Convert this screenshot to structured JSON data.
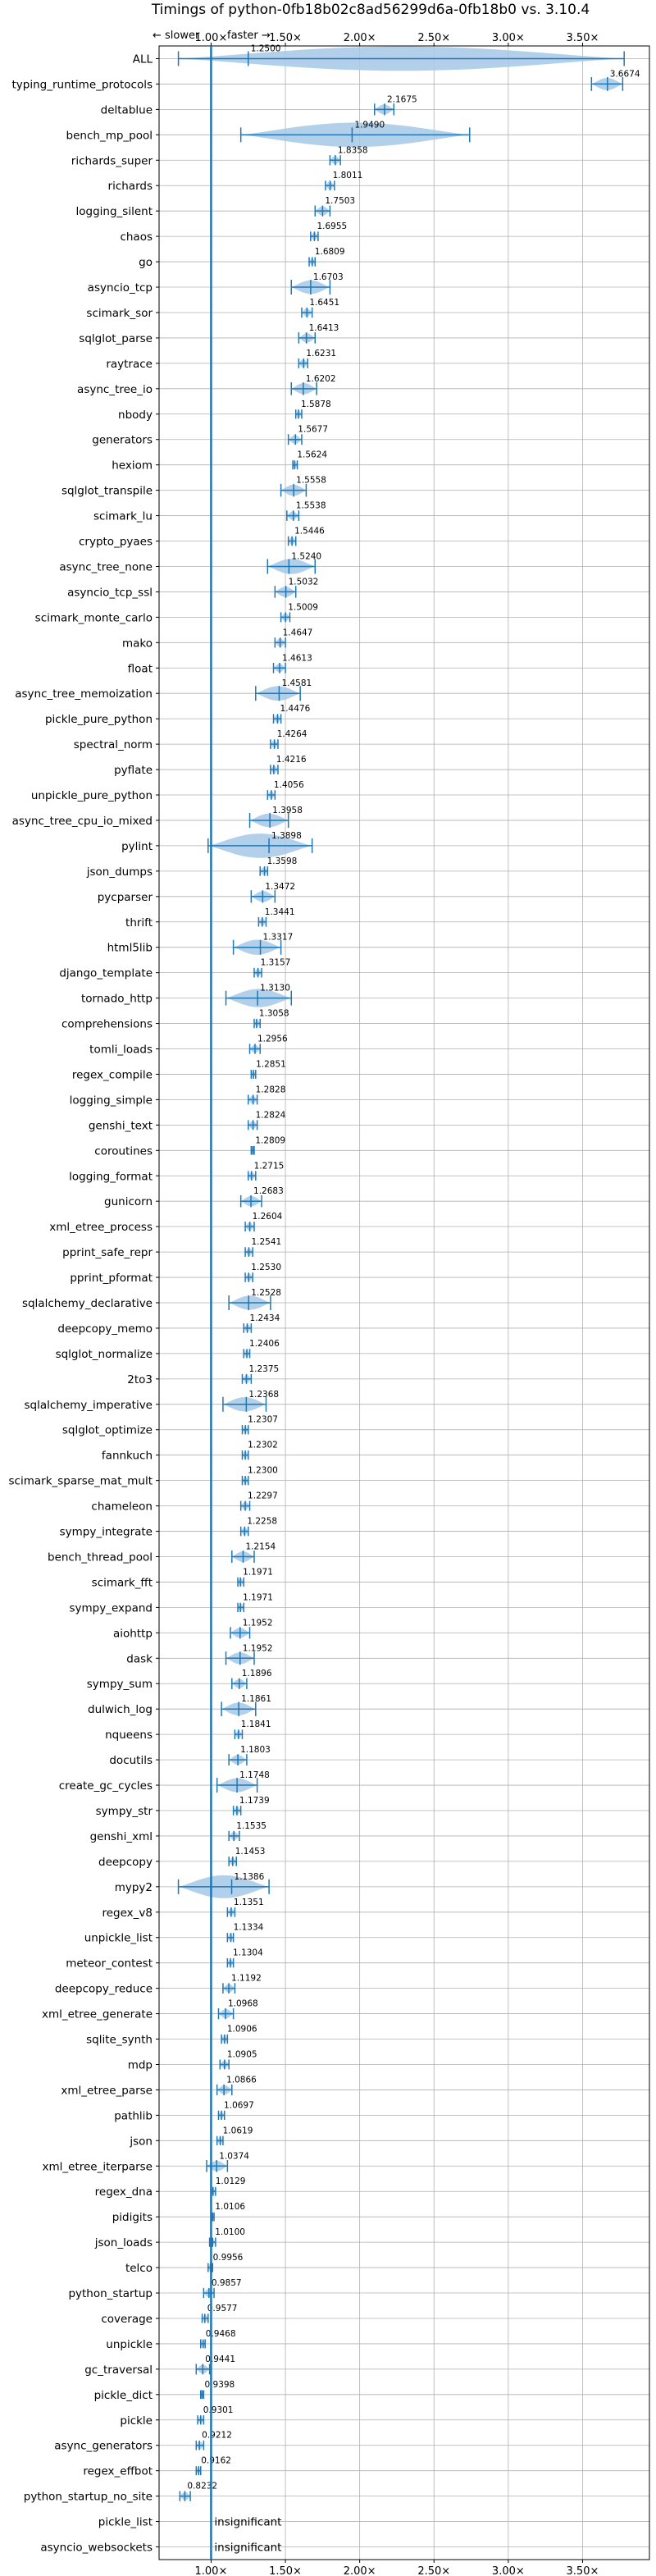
{
  "chart_data": {
    "type": "violin",
    "title": "Timings of python-0fb18b02c8ad56299d6a-0fb18b0 vs. 3.10.4",
    "xlim": [
      0.65,
      3.95
    ],
    "xticks": [
      "1.00×",
      "1.50×",
      "2.00×",
      "2.50×",
      "3.00×",
      "3.50×"
    ],
    "direction_left": "← slower",
    "direction_right": "faster →",
    "reference_line": 1.0,
    "grid": true,
    "benchmarks": [
      {
        "name": "ALL",
        "label": "1.2500",
        "value": 1.25,
        "lo": 0.78,
        "hi": 3.78
      },
      {
        "name": "typing_runtime_protocols",
        "label": "3.6674",
        "value": 3.6674,
        "lo": 3.56,
        "hi": 3.77
      },
      {
        "name": "deltablue",
        "label": "2.1675",
        "value": 2.1675,
        "lo": 2.1,
        "hi": 2.23
      },
      {
        "name": "bench_mp_pool",
        "label": "1.9490",
        "value": 1.949,
        "lo": 1.2,
        "hi": 2.74
      },
      {
        "name": "richards_super",
        "label": "1.8358",
        "value": 1.8358,
        "lo": 1.8,
        "hi": 1.87
      },
      {
        "name": "richards",
        "label": "1.8011",
        "value": 1.8011,
        "lo": 1.77,
        "hi": 1.83
      },
      {
        "name": "logging_silent",
        "label": "1.7503",
        "value": 1.7503,
        "lo": 1.7,
        "hi": 1.8
      },
      {
        "name": "chaos",
        "label": "1.6955",
        "value": 1.6955,
        "lo": 1.67,
        "hi": 1.72
      },
      {
        "name": "go",
        "label": "1.6809",
        "value": 1.6809,
        "lo": 1.66,
        "hi": 1.7
      },
      {
        "name": "asyncio_tcp",
        "label": "1.6703",
        "value": 1.6703,
        "lo": 1.54,
        "hi": 1.8
      },
      {
        "name": "scimark_sor",
        "label": "1.6451",
        "value": 1.6451,
        "lo": 1.61,
        "hi": 1.68
      },
      {
        "name": "sqlglot_parse",
        "label": "1.6413",
        "value": 1.6413,
        "lo": 1.59,
        "hi": 1.7
      },
      {
        "name": "raytrace",
        "label": "1.6231",
        "value": 1.6231,
        "lo": 1.59,
        "hi": 1.65
      },
      {
        "name": "async_tree_io",
        "label": "1.6202",
        "value": 1.6202,
        "lo": 1.54,
        "hi": 1.71
      },
      {
        "name": "nbody",
        "label": "1.5878",
        "value": 1.5878,
        "lo": 1.57,
        "hi": 1.61
      },
      {
        "name": "generators",
        "label": "1.5677",
        "value": 1.5677,
        "lo": 1.52,
        "hi": 1.61
      },
      {
        "name": "hexiom",
        "label": "1.5624",
        "value": 1.5624,
        "lo": 1.55,
        "hi": 1.58
      },
      {
        "name": "sqlglot_transpile",
        "label": "1.5558",
        "value": 1.5558,
        "lo": 1.47,
        "hi": 1.64
      },
      {
        "name": "scimark_lu",
        "label": "1.5538",
        "value": 1.5538,
        "lo": 1.51,
        "hi": 1.59
      },
      {
        "name": "crypto_pyaes",
        "label": "1.5446",
        "value": 1.5446,
        "lo": 1.52,
        "hi": 1.57
      },
      {
        "name": "async_tree_none",
        "label": "1.5240",
        "value": 1.524,
        "lo": 1.38,
        "hi": 1.7
      },
      {
        "name": "asyncio_tcp_ssl",
        "label": "1.5032",
        "value": 1.5032,
        "lo": 1.43,
        "hi": 1.57
      },
      {
        "name": "scimark_monte_carlo",
        "label": "1.5009",
        "value": 1.5009,
        "lo": 1.47,
        "hi": 1.53
      },
      {
        "name": "mako",
        "label": "1.4647",
        "value": 1.4647,
        "lo": 1.43,
        "hi": 1.5
      },
      {
        "name": "float",
        "label": "1.4613",
        "value": 1.4613,
        "lo": 1.42,
        "hi": 1.5
      },
      {
        "name": "async_tree_memoization",
        "label": "1.4581",
        "value": 1.4581,
        "lo": 1.3,
        "hi": 1.6
      },
      {
        "name": "pickle_pure_python",
        "label": "1.4476",
        "value": 1.4476,
        "lo": 1.42,
        "hi": 1.47
      },
      {
        "name": "spectral_norm",
        "label": "1.4264",
        "value": 1.4264,
        "lo": 1.4,
        "hi": 1.45
      },
      {
        "name": "pyflate",
        "label": "1.4216",
        "value": 1.4216,
        "lo": 1.4,
        "hi": 1.45
      },
      {
        "name": "unpickle_pure_python",
        "label": "1.4056",
        "value": 1.4056,
        "lo": 1.38,
        "hi": 1.43
      },
      {
        "name": "async_tree_cpu_io_mixed",
        "label": "1.3958",
        "value": 1.3958,
        "lo": 1.26,
        "hi": 1.52
      },
      {
        "name": "pylint",
        "label": "1.3898",
        "value": 1.3898,
        "lo": 0.98,
        "hi": 1.68
      },
      {
        "name": "json_dumps",
        "label": "1.3598",
        "value": 1.3598,
        "lo": 1.33,
        "hi": 1.38
      },
      {
        "name": "pycparser",
        "label": "1.3472",
        "value": 1.3472,
        "lo": 1.27,
        "hi": 1.43
      },
      {
        "name": "thrift",
        "label": "1.3441",
        "value": 1.3441,
        "lo": 1.32,
        "hi": 1.37
      },
      {
        "name": "html5lib",
        "label": "1.3317",
        "value": 1.3317,
        "lo": 1.15,
        "hi": 1.47
      },
      {
        "name": "django_template",
        "label": "1.3157",
        "value": 1.3157,
        "lo": 1.29,
        "hi": 1.34
      },
      {
        "name": "tornado_http",
        "label": "1.3130",
        "value": 1.313,
        "lo": 1.1,
        "hi": 1.54
      },
      {
        "name": "comprehensions",
        "label": "1.3058",
        "value": 1.3058,
        "lo": 1.29,
        "hi": 1.33
      },
      {
        "name": "tomli_loads",
        "label": "1.2956",
        "value": 1.2956,
        "lo": 1.26,
        "hi": 1.33
      },
      {
        "name": "regex_compile",
        "label": "1.2851",
        "value": 1.2851,
        "lo": 1.27,
        "hi": 1.3
      },
      {
        "name": "logging_simple",
        "label": "1.2828",
        "value": 1.2828,
        "lo": 1.25,
        "hi": 1.31
      },
      {
        "name": "genshi_text",
        "label": "1.2824",
        "value": 1.2824,
        "lo": 1.25,
        "hi": 1.31
      },
      {
        "name": "coroutines",
        "label": "1.2809",
        "value": 1.2809,
        "lo": 1.27,
        "hi": 1.29
      },
      {
        "name": "logging_format",
        "label": "1.2715",
        "value": 1.2715,
        "lo": 1.25,
        "hi": 1.3
      },
      {
        "name": "gunicorn",
        "label": "1.2683",
        "value": 1.2683,
        "lo": 1.2,
        "hi": 1.34
      },
      {
        "name": "xml_etree_process",
        "label": "1.2604",
        "value": 1.2604,
        "lo": 1.23,
        "hi": 1.29
      },
      {
        "name": "pprint_safe_repr",
        "label": "1.2541",
        "value": 1.2541,
        "lo": 1.23,
        "hi": 1.28
      },
      {
        "name": "pprint_pformat",
        "label": "1.2530",
        "value": 1.253,
        "lo": 1.23,
        "hi": 1.28
      },
      {
        "name": "sqlalchemy_declarative",
        "label": "1.2528",
        "value": 1.2528,
        "lo": 1.12,
        "hi": 1.4
      },
      {
        "name": "deepcopy_memo",
        "label": "1.2434",
        "value": 1.2434,
        "lo": 1.22,
        "hi": 1.27
      },
      {
        "name": "sqlglot_normalize",
        "label": "1.2406",
        "value": 1.2406,
        "lo": 1.22,
        "hi": 1.26
      },
      {
        "name": "2to3",
        "label": "1.2375",
        "value": 1.2375,
        "lo": 1.21,
        "hi": 1.27
      },
      {
        "name": "sqlalchemy_imperative",
        "label": "1.2368",
        "value": 1.2368,
        "lo": 1.08,
        "hi": 1.37
      },
      {
        "name": "sqlglot_optimize",
        "label": "1.2307",
        "value": 1.2307,
        "lo": 1.21,
        "hi": 1.25
      },
      {
        "name": "fannkuch",
        "label": "1.2302",
        "value": 1.2302,
        "lo": 1.21,
        "hi": 1.25
      },
      {
        "name": "scimark_sparse_mat_mult",
        "label": "1.2300",
        "value": 1.23,
        "lo": 1.21,
        "hi": 1.25
      },
      {
        "name": "chameleon",
        "label": "1.2297",
        "value": 1.2297,
        "lo": 1.2,
        "hi": 1.26
      },
      {
        "name": "sympy_integrate",
        "label": "1.2258",
        "value": 1.2258,
        "lo": 1.2,
        "hi": 1.25
      },
      {
        "name": "bench_thread_pool",
        "label": "1.2154",
        "value": 1.2154,
        "lo": 1.14,
        "hi": 1.29
      },
      {
        "name": "scimark_fft",
        "label": "1.1971",
        "value": 1.1971,
        "lo": 1.18,
        "hi": 1.22
      },
      {
        "name": "sympy_expand",
        "label": "1.1971",
        "value": 1.1971,
        "lo": 1.18,
        "hi": 1.22
      },
      {
        "name": "aiohttp",
        "label": "1.1952",
        "value": 1.1952,
        "lo": 1.13,
        "hi": 1.26
      },
      {
        "name": "dask",
        "label": "1.1952",
        "value": 1.1952,
        "lo": 1.1,
        "hi": 1.29
      },
      {
        "name": "sympy_sum",
        "label": "1.1896",
        "value": 1.1896,
        "lo": 1.14,
        "hi": 1.24
      },
      {
        "name": "dulwich_log",
        "label": "1.1861",
        "value": 1.1861,
        "lo": 1.07,
        "hi": 1.3
      },
      {
        "name": "nqueens",
        "label": "1.1841",
        "value": 1.1841,
        "lo": 1.16,
        "hi": 1.21
      },
      {
        "name": "docutils",
        "label": "1.1803",
        "value": 1.1803,
        "lo": 1.12,
        "hi": 1.24
      },
      {
        "name": "create_gc_cycles",
        "label": "1.1748",
        "value": 1.1748,
        "lo": 1.04,
        "hi": 1.31
      },
      {
        "name": "sympy_str",
        "label": "1.1739",
        "value": 1.1739,
        "lo": 1.15,
        "hi": 1.2
      },
      {
        "name": "genshi_xml",
        "label": "1.1535",
        "value": 1.1535,
        "lo": 1.12,
        "hi": 1.19
      },
      {
        "name": "deepcopy",
        "label": "1.1453",
        "value": 1.1453,
        "lo": 1.12,
        "hi": 1.17
      },
      {
        "name": "mypy2",
        "label": "1.1386",
        "value": 1.1386,
        "lo": 0.78,
        "hi": 1.39
      },
      {
        "name": "regex_v8",
        "label": "1.1351",
        "value": 1.1351,
        "lo": 1.11,
        "hi": 1.16
      },
      {
        "name": "unpickle_list",
        "label": "1.1334",
        "value": 1.1334,
        "lo": 1.11,
        "hi": 1.15
      },
      {
        "name": "meteor_contest",
        "label": "1.1304",
        "value": 1.1304,
        "lo": 1.11,
        "hi": 1.15
      },
      {
        "name": "deepcopy_reduce",
        "label": "1.1192",
        "value": 1.1192,
        "lo": 1.08,
        "hi": 1.16
      },
      {
        "name": "xml_etree_generate",
        "label": "1.0968",
        "value": 1.0968,
        "lo": 1.05,
        "hi": 1.15
      },
      {
        "name": "sqlite_synth",
        "label": "1.0906",
        "value": 1.0906,
        "lo": 1.07,
        "hi": 1.11
      },
      {
        "name": "mdp",
        "label": "1.0905",
        "value": 1.0905,
        "lo": 1.06,
        "hi": 1.12
      },
      {
        "name": "xml_etree_parse",
        "label": "1.0866",
        "value": 1.0866,
        "lo": 1.04,
        "hi": 1.14
      },
      {
        "name": "pathlib",
        "label": "1.0697",
        "value": 1.0697,
        "lo": 1.05,
        "hi": 1.09
      },
      {
        "name": "json",
        "label": "1.0619",
        "value": 1.0619,
        "lo": 1.04,
        "hi": 1.08
      },
      {
        "name": "xml_etree_iterparse",
        "label": "1.0374",
        "value": 1.0374,
        "lo": 0.97,
        "hi": 1.11
      },
      {
        "name": "regex_dna",
        "label": "1.0129",
        "value": 1.0129,
        "lo": 1.0,
        "hi": 1.03
      },
      {
        "name": "pidigits",
        "label": "1.0106",
        "value": 1.0106,
        "lo": 1.0,
        "hi": 1.02
      },
      {
        "name": "json_loads",
        "label": "1.0100",
        "value": 1.01,
        "lo": 0.99,
        "hi": 1.03
      },
      {
        "name": "telco",
        "label": "0.9956",
        "value": 0.9956,
        "lo": 0.98,
        "hi": 1.01
      },
      {
        "name": "python_startup",
        "label": "0.9857",
        "value": 0.9857,
        "lo": 0.95,
        "hi": 1.02
      },
      {
        "name": "coverage",
        "label": "0.9577",
        "value": 0.9577,
        "lo": 0.94,
        "hi": 0.98
      },
      {
        "name": "unpickle",
        "label": "0.9468",
        "value": 0.9468,
        "lo": 0.93,
        "hi": 0.96
      },
      {
        "name": "gc_traversal",
        "label": "0.9441",
        "value": 0.9441,
        "lo": 0.9,
        "hi": 0.99
      },
      {
        "name": "pickle_dict",
        "label": "0.9398",
        "value": 0.9398,
        "lo": 0.93,
        "hi": 0.95
      },
      {
        "name": "pickle",
        "label": "0.9301",
        "value": 0.9301,
        "lo": 0.91,
        "hi": 0.95
      },
      {
        "name": "async_generators",
        "label": "0.9212",
        "value": 0.9212,
        "lo": 0.9,
        "hi": 0.95
      },
      {
        "name": "regex_effbot",
        "label": "0.9162",
        "value": 0.9162,
        "lo": 0.9,
        "hi": 0.93
      },
      {
        "name": "python_startup_no_site",
        "label": "0.8232",
        "value": 0.8232,
        "lo": 0.79,
        "hi": 0.86
      },
      {
        "name": "pickle_list",
        "label": "insignificant",
        "value": null,
        "lo": null,
        "hi": null
      },
      {
        "name": "asyncio_websockets",
        "label": "insignificant",
        "value": null,
        "lo": null,
        "hi": null
      }
    ]
  }
}
